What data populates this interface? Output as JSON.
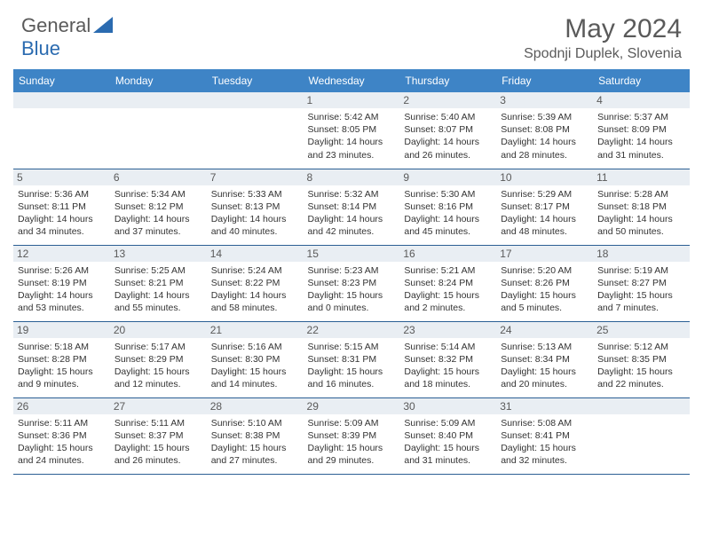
{
  "logo": {
    "word1": "General",
    "word2": "Blue",
    "icon_color": "#2b6bb0"
  },
  "title": "May 2024",
  "location": "Spodnji Duplek, Slovenia",
  "header_bg": "#3e84c6",
  "header_fg": "#ffffff",
  "daynum_bg": "#e9eef3",
  "border_color": "#2b5f94",
  "weekdays": [
    "Sunday",
    "Monday",
    "Tuesday",
    "Wednesday",
    "Thursday",
    "Friday",
    "Saturday"
  ],
  "weeks": [
    [
      null,
      null,
      null,
      {
        "n": "1",
        "sr": "Sunrise: 5:42 AM",
        "ss": "Sunset: 8:05 PM",
        "d1": "Daylight: 14 hours",
        "d2": "and 23 minutes."
      },
      {
        "n": "2",
        "sr": "Sunrise: 5:40 AM",
        "ss": "Sunset: 8:07 PM",
        "d1": "Daylight: 14 hours",
        "d2": "and 26 minutes."
      },
      {
        "n": "3",
        "sr": "Sunrise: 5:39 AM",
        "ss": "Sunset: 8:08 PM",
        "d1": "Daylight: 14 hours",
        "d2": "and 28 minutes."
      },
      {
        "n": "4",
        "sr": "Sunrise: 5:37 AM",
        "ss": "Sunset: 8:09 PM",
        "d1": "Daylight: 14 hours",
        "d2": "and 31 minutes."
      }
    ],
    [
      {
        "n": "5",
        "sr": "Sunrise: 5:36 AM",
        "ss": "Sunset: 8:11 PM",
        "d1": "Daylight: 14 hours",
        "d2": "and 34 minutes."
      },
      {
        "n": "6",
        "sr": "Sunrise: 5:34 AM",
        "ss": "Sunset: 8:12 PM",
        "d1": "Daylight: 14 hours",
        "d2": "and 37 minutes."
      },
      {
        "n": "7",
        "sr": "Sunrise: 5:33 AM",
        "ss": "Sunset: 8:13 PM",
        "d1": "Daylight: 14 hours",
        "d2": "and 40 minutes."
      },
      {
        "n": "8",
        "sr": "Sunrise: 5:32 AM",
        "ss": "Sunset: 8:14 PM",
        "d1": "Daylight: 14 hours",
        "d2": "and 42 minutes."
      },
      {
        "n": "9",
        "sr": "Sunrise: 5:30 AM",
        "ss": "Sunset: 8:16 PM",
        "d1": "Daylight: 14 hours",
        "d2": "and 45 minutes."
      },
      {
        "n": "10",
        "sr": "Sunrise: 5:29 AM",
        "ss": "Sunset: 8:17 PM",
        "d1": "Daylight: 14 hours",
        "d2": "and 48 minutes."
      },
      {
        "n": "11",
        "sr": "Sunrise: 5:28 AM",
        "ss": "Sunset: 8:18 PM",
        "d1": "Daylight: 14 hours",
        "d2": "and 50 minutes."
      }
    ],
    [
      {
        "n": "12",
        "sr": "Sunrise: 5:26 AM",
        "ss": "Sunset: 8:19 PM",
        "d1": "Daylight: 14 hours",
        "d2": "and 53 minutes."
      },
      {
        "n": "13",
        "sr": "Sunrise: 5:25 AM",
        "ss": "Sunset: 8:21 PM",
        "d1": "Daylight: 14 hours",
        "d2": "and 55 minutes."
      },
      {
        "n": "14",
        "sr": "Sunrise: 5:24 AM",
        "ss": "Sunset: 8:22 PM",
        "d1": "Daylight: 14 hours",
        "d2": "and 58 minutes."
      },
      {
        "n": "15",
        "sr": "Sunrise: 5:23 AM",
        "ss": "Sunset: 8:23 PM",
        "d1": "Daylight: 15 hours",
        "d2": "and 0 minutes."
      },
      {
        "n": "16",
        "sr": "Sunrise: 5:21 AM",
        "ss": "Sunset: 8:24 PM",
        "d1": "Daylight: 15 hours",
        "d2": "and 2 minutes."
      },
      {
        "n": "17",
        "sr": "Sunrise: 5:20 AM",
        "ss": "Sunset: 8:26 PM",
        "d1": "Daylight: 15 hours",
        "d2": "and 5 minutes."
      },
      {
        "n": "18",
        "sr": "Sunrise: 5:19 AM",
        "ss": "Sunset: 8:27 PM",
        "d1": "Daylight: 15 hours",
        "d2": "and 7 minutes."
      }
    ],
    [
      {
        "n": "19",
        "sr": "Sunrise: 5:18 AM",
        "ss": "Sunset: 8:28 PM",
        "d1": "Daylight: 15 hours",
        "d2": "and 9 minutes."
      },
      {
        "n": "20",
        "sr": "Sunrise: 5:17 AM",
        "ss": "Sunset: 8:29 PM",
        "d1": "Daylight: 15 hours",
        "d2": "and 12 minutes."
      },
      {
        "n": "21",
        "sr": "Sunrise: 5:16 AM",
        "ss": "Sunset: 8:30 PM",
        "d1": "Daylight: 15 hours",
        "d2": "and 14 minutes."
      },
      {
        "n": "22",
        "sr": "Sunrise: 5:15 AM",
        "ss": "Sunset: 8:31 PM",
        "d1": "Daylight: 15 hours",
        "d2": "and 16 minutes."
      },
      {
        "n": "23",
        "sr": "Sunrise: 5:14 AM",
        "ss": "Sunset: 8:32 PM",
        "d1": "Daylight: 15 hours",
        "d2": "and 18 minutes."
      },
      {
        "n": "24",
        "sr": "Sunrise: 5:13 AM",
        "ss": "Sunset: 8:34 PM",
        "d1": "Daylight: 15 hours",
        "d2": "and 20 minutes."
      },
      {
        "n": "25",
        "sr": "Sunrise: 5:12 AM",
        "ss": "Sunset: 8:35 PM",
        "d1": "Daylight: 15 hours",
        "d2": "and 22 minutes."
      }
    ],
    [
      {
        "n": "26",
        "sr": "Sunrise: 5:11 AM",
        "ss": "Sunset: 8:36 PM",
        "d1": "Daylight: 15 hours",
        "d2": "and 24 minutes."
      },
      {
        "n": "27",
        "sr": "Sunrise: 5:11 AM",
        "ss": "Sunset: 8:37 PM",
        "d1": "Daylight: 15 hours",
        "d2": "and 26 minutes."
      },
      {
        "n": "28",
        "sr": "Sunrise: 5:10 AM",
        "ss": "Sunset: 8:38 PM",
        "d1": "Daylight: 15 hours",
        "d2": "and 27 minutes."
      },
      {
        "n": "29",
        "sr": "Sunrise: 5:09 AM",
        "ss": "Sunset: 8:39 PM",
        "d1": "Daylight: 15 hours",
        "d2": "and 29 minutes."
      },
      {
        "n": "30",
        "sr": "Sunrise: 5:09 AM",
        "ss": "Sunset: 8:40 PM",
        "d1": "Daylight: 15 hours",
        "d2": "and 31 minutes."
      },
      {
        "n": "31",
        "sr": "Sunrise: 5:08 AM",
        "ss": "Sunset: 8:41 PM",
        "d1": "Daylight: 15 hours",
        "d2": "and 32 minutes."
      },
      null
    ]
  ]
}
